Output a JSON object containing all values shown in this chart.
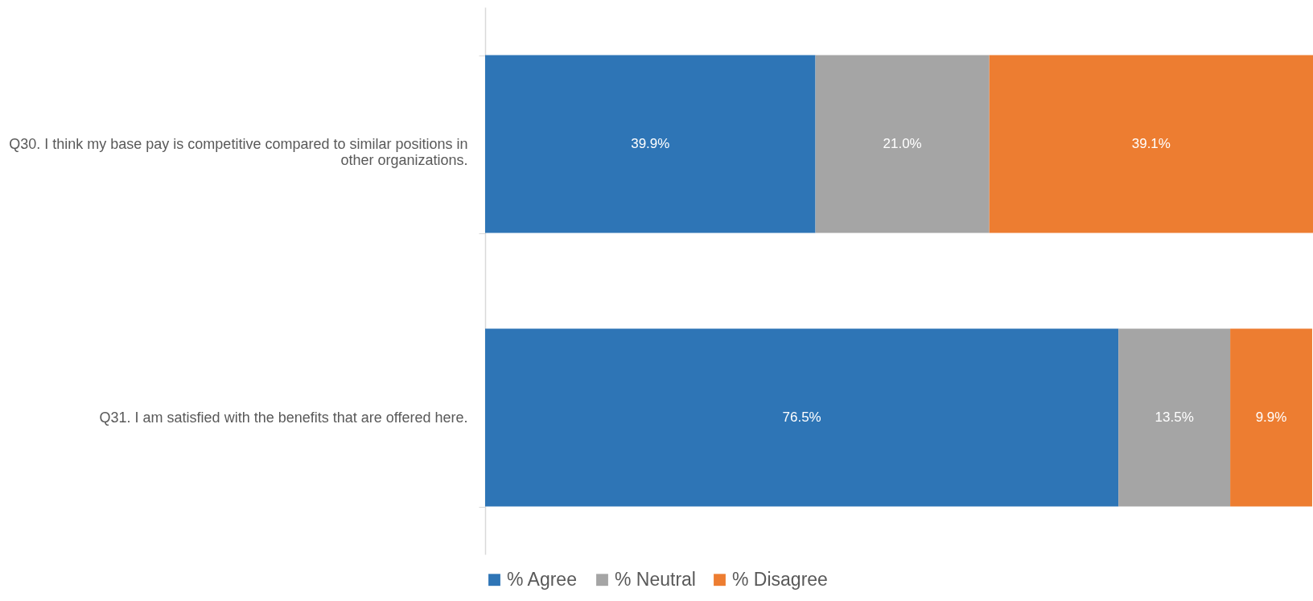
{
  "chart_data": {
    "type": "bar",
    "orientation": "horizontal",
    "stacked": true,
    "categories": [
      "Q30.  I think my base pay is competitive compared to similar positions in other organizations.",
      "Q31.  I am satisfied with the benefits that are offered here."
    ],
    "series": [
      {
        "name": "% Agree",
        "color": "#2e75b6",
        "values": [
          39.9,
          76.5
        ],
        "value_labels": [
          "39.9%",
          "76.5%"
        ]
      },
      {
        "name": "% Neutral",
        "color": "#a5a5a5",
        "values": [
          21.0,
          13.5
        ],
        "value_labels": [
          "21.0%",
          "13.5%"
        ]
      },
      {
        "name": "% Disagree",
        "color": "#ed7d31",
        "values": [
          39.1,
          9.9
        ],
        "value_labels": [
          "39.1%",
          "9.9%"
        ]
      }
    ],
    "xlim": [
      0,
      100
    ],
    "tick_labels": "y",
    "legend": "bottom"
  }
}
